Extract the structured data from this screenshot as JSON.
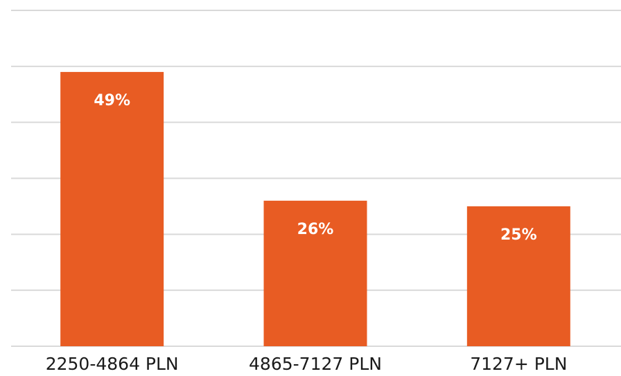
{
  "chart_data": {
    "type": "bar",
    "categories": [
      "2250-4864 PLN",
      "4865-7127 PLN",
      "7127+ PLN"
    ],
    "values": [
      49,
      26,
      25
    ],
    "data_labels": [
      "49%",
      "26%",
      "25%"
    ],
    "ylim": [
      0,
      60
    ],
    "grid": true,
    "colors": {
      "bar": "#e85c23",
      "grid": "#d9d9d9",
      "label": "#ffffff"
    }
  }
}
